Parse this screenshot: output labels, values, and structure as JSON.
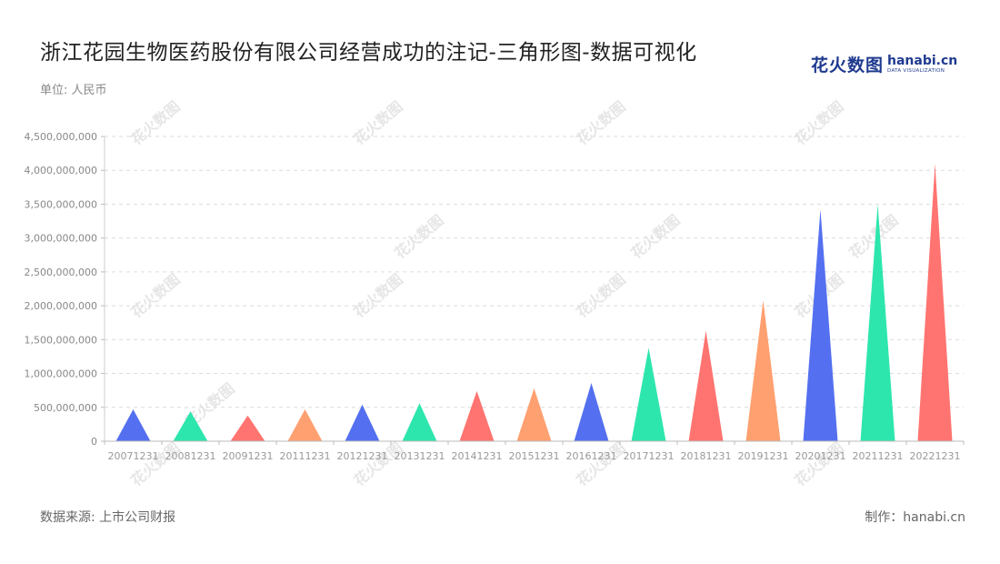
{
  "title": "浙江花园生物医药股份有限公司经营成功的注记-三角形图-数据可视化",
  "unit": "单位: 人民币",
  "logo": {
    "cn": "花火数图",
    "en": "hanabi.cn",
    "tagline": "DATA VISUALIZATION"
  },
  "footer": {
    "source": "数据来源: 上市公司财报",
    "maker": "制作：hanabi.cn"
  },
  "chart_data": {
    "type": "bar",
    "shape": "triangle",
    "categories": [
      "20071231",
      "20081231",
      "20091231",
      "20111231",
      "20121231",
      "20131231",
      "20141231",
      "20151231",
      "20161231",
      "20171231",
      "20181231",
      "20191231",
      "20201231",
      "20211231",
      "20221231"
    ],
    "values": [
      470000000,
      440000000,
      380000000,
      470000000,
      540000000,
      560000000,
      740000000,
      780000000,
      860000000,
      1380000000,
      1630000000,
      2080000000,
      3420000000,
      3500000000,
      4100000000
    ],
    "ylim": [
      0,
      4500000000
    ],
    "yticks": [
      0,
      500000000,
      1000000000,
      1500000000,
      2000000000,
      2500000000,
      3000000000,
      3500000000,
      4000000000,
      4500000000
    ],
    "ytick_labels": [
      "0",
      "500,000,000",
      "1,000,000,000",
      "1,500,000,000",
      "2,000,000,000",
      "2,500,000,000",
      "3,000,000,000",
      "3,500,000,000",
      "4,000,000,000",
      "4,500,000,000"
    ],
    "palette": [
      "#5470f0",
      "#2de6ae",
      "#ff7470",
      "#ffa070"
    ],
    "grid": true,
    "watermark": "花火数图"
  }
}
